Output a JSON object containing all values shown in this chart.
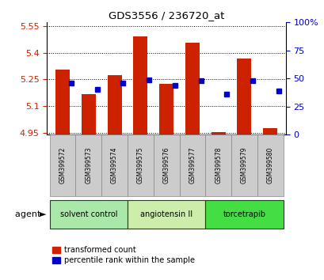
{
  "title": "GDS3556 / 236720_at",
  "samples": [
    "GSM399572",
    "GSM399573",
    "GSM399574",
    "GSM399575",
    "GSM399576",
    "GSM399577",
    "GSM399578",
    "GSM399579",
    "GSM399580"
  ],
  "transformed_counts": [
    5.305,
    5.165,
    5.275,
    5.49,
    5.225,
    5.455,
    4.955,
    5.365,
    4.975
  ],
  "percentile_ranks": [
    46,
    40,
    46,
    49,
    44,
    48,
    36,
    48,
    39
  ],
  "ylim_left": [
    4.94,
    5.57
  ],
  "ylim_right": [
    0,
    100
  ],
  "yticks_left": [
    4.95,
    5.1,
    5.25,
    5.4,
    5.55
  ],
  "yticks_right": [
    0,
    25,
    50,
    75,
    100
  ],
  "groups": [
    {
      "label": "solvent control",
      "samples": [
        0,
        1,
        2
      ],
      "color": "#aae8aa"
    },
    {
      "label": "angiotensin II",
      "samples": [
        3,
        4,
        5
      ],
      "color": "#cceeaa"
    },
    {
      "label": "torcetrapib",
      "samples": [
        6,
        7,
        8
      ],
      "color": "#44dd44"
    }
  ],
  "bar_color": "#cc2200",
  "dot_color": "#0000cc",
  "bar_width": 0.55,
  "plot_bg_color": "#ffffff",
  "group_label": "agent",
  "legend_bar_label": "transformed count",
  "legend_dot_label": "percentile rank within the sample",
  "left_axis_color": "#cc2200",
  "right_axis_color": "#0000cc",
  "tick_bg_color": "#cccccc",
  "sample_box_color": "#cccccc"
}
